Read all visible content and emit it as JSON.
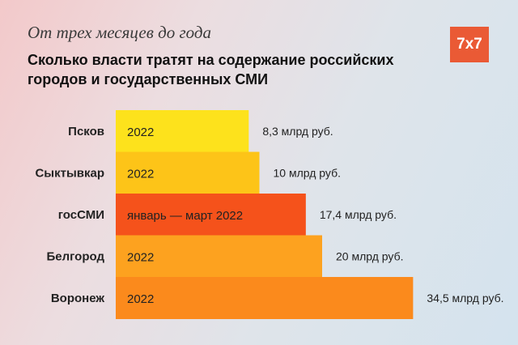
{
  "header": {
    "subtitle": "От трех месяцев до года",
    "title": "Сколько власти тратят на содержание российских городов и государственных СМИ",
    "logo": "7x7",
    "logo_color": "#ea5a35"
  },
  "chart_data": {
    "type": "bar",
    "orientation": "horizontal",
    "categories": [
      "Псков",
      "Сыктывкар",
      "госСМИ",
      "Белгород",
      "Воронеж"
    ],
    "values": [
      8.3,
      10,
      17.4,
      20,
      34.5
    ],
    "value_labels": [
      "8,3 млрд руб.",
      "10 млрд руб.",
      "17,4 млрд руб.",
      "20 млрд руб.",
      "34,5 млрд руб."
    ],
    "period_labels": [
      "2022",
      "2022",
      "январь — март 2022",
      "2022",
      "2022"
    ],
    "colors": [
      "#fde21c",
      "#fdc418",
      "#f5521b",
      "#fda21f",
      "#fb8a1c"
    ],
    "unit": "млрд руб.",
    "grid": false,
    "legend": "none"
  }
}
